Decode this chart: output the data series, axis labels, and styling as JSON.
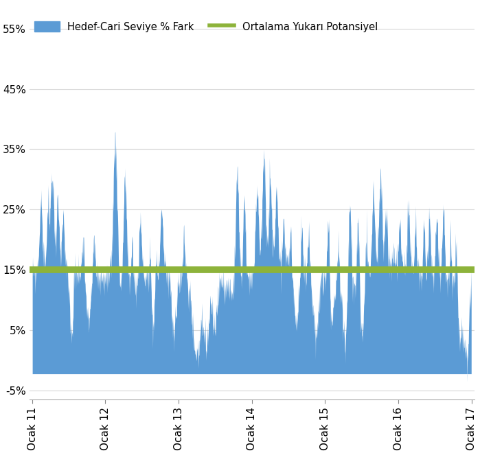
{
  "legend_label_bar": "Hedef-Cari Seviye % Fark",
  "legend_label_line": "Ortalama Yukarı Potansiyel",
  "bar_color": "#5B9BD5",
  "line_color": "#8DB33A",
  "line_value": 0.15,
  "line_width": 7,
  "ylim": [
    -0.065,
    0.57
  ],
  "yticks": [
    -0.05,
    0.05,
    0.15,
    0.25,
    0.35,
    0.45,
    0.55
  ],
  "ytick_labels": [
    "-5%",
    "5%",
    "15%",
    "25%",
    "35%",
    "45%",
    "55%"
  ],
  "xtick_labels": [
    "Ocak 11",
    "Ocak 12",
    "Ocak 13",
    "Ocak 14",
    "Ocak 15",
    "Ocak 16",
    "Ocak 17"
  ],
  "background_color": "#FFFFFF",
  "grid_color": "#D8D8D8",
  "seed": 99
}
